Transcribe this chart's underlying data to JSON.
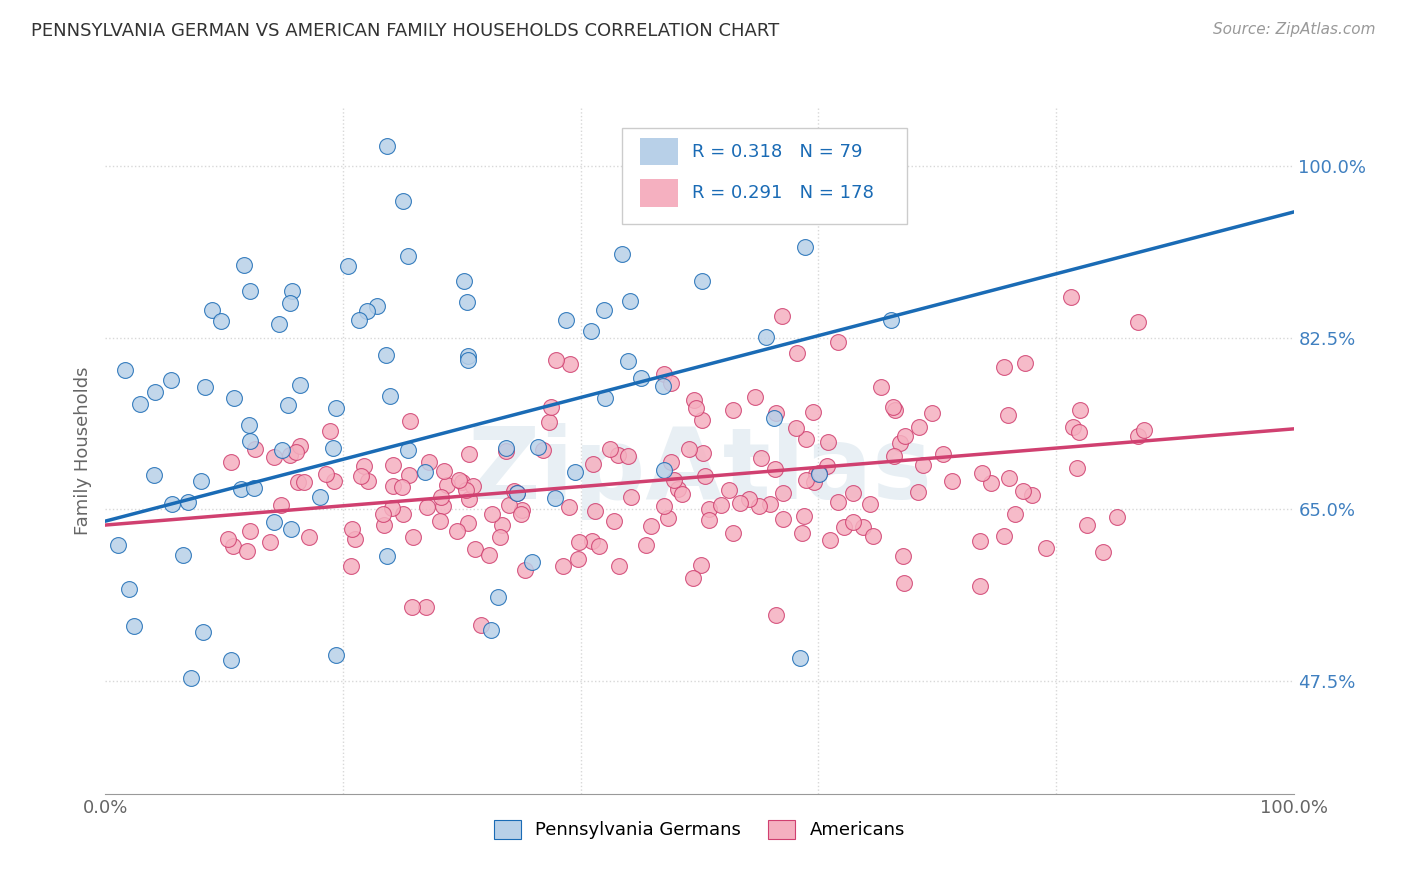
{
  "title": "PENNSYLVANIA GERMAN VS AMERICAN FAMILY HOUSEHOLDS CORRELATION CHART",
  "source": "Source: ZipAtlas.com",
  "ylabel": "Family Households",
  "xlim": [
    0.0,
    1.0
  ],
  "ylim": [
    0.36,
    1.06
  ],
  "yticks": [
    0.475,
    0.65,
    0.825,
    1.0
  ],
  "ytick_labels": [
    "47.5%",
    "65.0%",
    "82.5%",
    "100.0%"
  ],
  "blue_R": 0.318,
  "blue_N": 79,
  "pink_R": 0.291,
  "pink_N": 178,
  "blue_color": "#b8d0e8",
  "pink_color": "#f5b0c0",
  "blue_line_color": "#1a6bb5",
  "pink_line_color": "#d04070",
  "legend_label_blue": "Pennsylvania Germans",
  "legend_label_pink": "Americans",
  "watermark": "ZipAtlas",
  "background_color": "#ffffff",
  "grid_color": "#d8d8d8",
  "title_color": "#333333",
  "axis_label_color": "#666666",
  "right_tick_color": "#4080c0",
  "seed": 12345
}
